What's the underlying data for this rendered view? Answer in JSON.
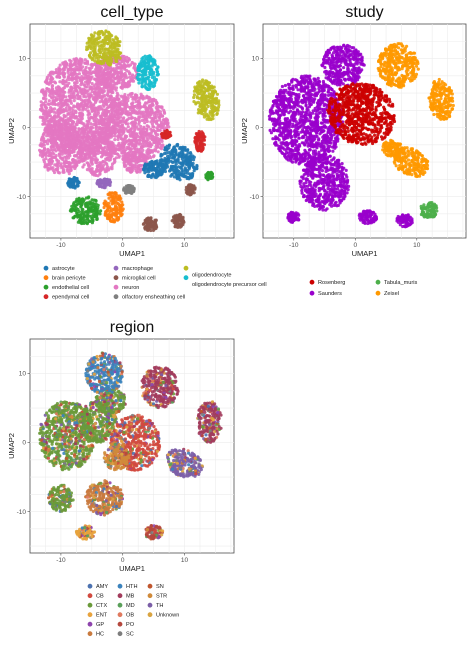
{
  "figure": {
    "panels": [
      {
        "title": "cell_type",
        "xlabel": "UMAP1",
        "ylabel": "UMAP2",
        "xticks": [
          "-10",
          "0",
          "10"
        ],
        "yticks": [
          "10",
          "0",
          "-10"
        ],
        "legend": [
          {
            "label": "astrocyte",
            "color": "#1f78b4"
          },
          {
            "label": "brain pericyte",
            "color": "#ff7f0e"
          },
          {
            "label": "endothelial cell",
            "color": "#2ca02c"
          },
          {
            "label": "ependymal cell",
            "color": "#d62728"
          },
          {
            "label": "macrophage",
            "color": "#9467bd"
          },
          {
            "label": "microglial cell",
            "color": "#8c564b"
          },
          {
            "label": "neuron",
            "color": "#e377c2"
          },
          {
            "label": "olfactory ensheathing cell",
            "color": "#7f7f7f"
          },
          {
            "label": "oligodendrocyte",
            "color": "#bcbd22"
          },
          {
            "label": "oligodendrocyte precursor cell",
            "color": "#17becf"
          }
        ]
      },
      {
        "title": "study",
        "xlabel": "UMAP1",
        "ylabel": "UMAP2",
        "xticks": [
          "-10",
          "0",
          "10"
        ],
        "yticks": [
          "10",
          "0",
          "-10"
        ],
        "legend": [
          {
            "label": "Rosenberg",
            "color": "#cc0000"
          },
          {
            "label": "Saunders",
            "color": "#9900cc"
          },
          {
            "label": "Tabula_muris",
            "color": "#4daf4a"
          },
          {
            "label": "Zeisel",
            "color": "#ff9900"
          }
        ]
      },
      {
        "title": "region",
        "xlabel": "UMAP1",
        "ylabel": "UMAP2",
        "xticks": [
          "-10",
          "0",
          "10"
        ],
        "yticks": [
          "10",
          "0",
          "-10"
        ],
        "legend": [
          {
            "label": "AMY",
            "color": "#4c72b0"
          },
          {
            "label": "CB",
            "color": "#d1493f"
          },
          {
            "label": "CTX",
            "color": "#6a9a3a"
          },
          {
            "label": "ENT",
            "color": "#e8a33d"
          },
          {
            "label": "GP",
            "color": "#8e44ad"
          },
          {
            "label": "HC",
            "color": "#c97a3e"
          },
          {
            "label": "HTH",
            "color": "#3b83bd"
          },
          {
            "label": "MB",
            "color": "#a23b5c"
          },
          {
            "label": "MD",
            "color": "#5aa05a"
          },
          {
            "label": "OB",
            "color": "#e07a5f"
          },
          {
            "label": "PO",
            "color": "#b5483e"
          },
          {
            "label": "SC",
            "color": "#7d7d7d"
          },
          {
            "label": "SN",
            "color": "#c0562e"
          },
          {
            "label": "STR",
            "color": "#d08a3a"
          },
          {
            "label": "TH",
            "color": "#7b5ea7"
          },
          {
            "label": "Unknown",
            "color": "#d9a441"
          }
        ]
      }
    ]
  },
  "chart_data": [
    {
      "type": "scatter",
      "title": "cell_type",
      "xlabel": "UMAP1",
      "ylabel": "UMAP2",
      "xlim": [
        -15,
        18
      ],
      "ylim": [
        -16,
        15
      ],
      "grid": true,
      "legend_position": "bottom",
      "series": [
        {
          "name": "neuron",
          "clusters": [
            [
              -8,
              4
            ],
            [
              -2,
              3
            ],
            [
              2,
              0
            ],
            [
              -10,
              0
            ],
            [
              -3,
              -3
            ]
          ]
        },
        {
          "name": "oligodendrocyte",
          "clusters": [
            [
              -2,
              11
            ],
            [
              13,
              4
            ]
          ]
        },
        {
          "name": "astrocyte",
          "clusters": [
            [
              8,
              -5
            ],
            [
              11,
              -3
            ]
          ]
        },
        {
          "name": "endothelial cell",
          "clusters": [
            [
              -5,
              -12
            ]
          ]
        },
        {
          "name": "brain pericyte",
          "clusters": [
            [
              -1,
              -12
            ]
          ]
        },
        {
          "name": "microglial cell",
          "clusters": [
            [
              4,
              -14
            ],
            [
              9,
              -13
            ]
          ]
        },
        {
          "name": "oligodendrocyte precursor cell",
          "clusters": [
            [
              4,
              8
            ]
          ]
        },
        {
          "name": "ependymal cell",
          "clusters": [
            [
              15,
              -2
            ]
          ]
        }
      ]
    },
    {
      "type": "scatter",
      "title": "study",
      "xlabel": "UMAP1",
      "ylabel": "UMAP2",
      "xlim": [
        -15,
        18
      ],
      "ylim": [
        -16,
        15
      ],
      "grid": true,
      "legend_position": "bottom",
      "series": [
        {
          "name": "Saunders",
          "clusters": [
            [
              -8,
              3
            ],
            [
              -3,
              10
            ],
            [
              -5,
              -10
            ]
          ]
        },
        {
          "name": "Rosenberg",
          "clusters": [
            [
              1,
              2
            ]
          ]
        },
        {
          "name": "Zeisel",
          "clusters": [
            [
              7,
              8
            ],
            [
              10,
              -5
            ],
            [
              13,
              3
            ]
          ]
        },
        {
          "name": "Tabula_muris",
          "clusters": [
            [
              13,
              -13
            ]
          ]
        }
      ]
    },
    {
      "type": "scatter",
      "title": "region",
      "xlabel": "UMAP1",
      "ylabel": "UMAP2",
      "xlim": [
        -15,
        18
      ],
      "ylim": [
        -16,
        15
      ],
      "grid": true,
      "legend_position": "bottom",
      "series": [
        {
          "name": "CTX",
          "clusters": [
            [
              -10,
              0
            ],
            [
              -3,
              3
            ]
          ]
        },
        {
          "name": "HC",
          "clusters": [
            [
              -3,
              -8
            ]
          ]
        },
        {
          "name": "CB",
          "clusters": [
            [
              2,
              0
            ]
          ]
        },
        {
          "name": "MB",
          "clusters": [
            [
              9,
              -3
            ]
          ]
        },
        {
          "name": "TH",
          "clusters": [
            [
              12,
              -3
            ]
          ]
        },
        {
          "name": "STR",
          "clusters": [
            [
              -1,
              -1
            ]
          ]
        }
      ]
    }
  ]
}
